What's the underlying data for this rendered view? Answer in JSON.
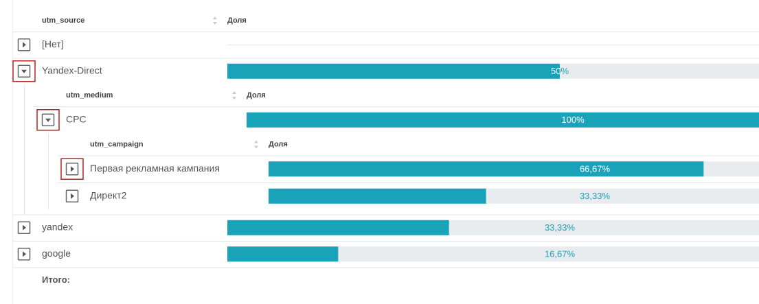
{
  "table": {
    "header": {
      "column": "utm_source",
      "share": "Доля"
    },
    "rows": [
      {
        "label": "[Нет]"
      },
      {
        "label": "Yandex-Direct",
        "value": 50,
        "value_label": "50%",
        "highlight": true,
        "children": {
          "header": {
            "column": "utm_medium",
            "share": "Доля"
          },
          "rows": [
            {
              "label": "CPC",
              "value": 100,
              "value_label": "100%",
              "highlight": true,
              "children": {
                "header": {
                  "column": "utm_campaign",
                  "share": "Доля"
                },
                "rows": [
                  {
                    "label": "Первая рекламная кампания",
                    "value": 66.67,
                    "value_label": "66,67%",
                    "highlight": true
                  },
                  {
                    "label": "Директ2",
                    "value": 33.33,
                    "value_label": "33,33%"
                  }
                ]
              }
            }
          ]
        }
      },
      {
        "label": "yandex",
        "value": 33.33,
        "value_label": "33,33%"
      },
      {
        "label": "google",
        "value": 16.67,
        "value_label": "16,67%"
      }
    ],
    "footer": "Итого:"
  }
}
